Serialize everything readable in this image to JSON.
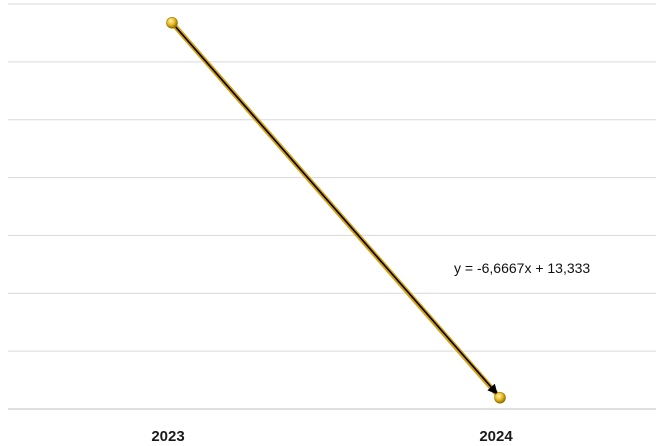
{
  "chart_data": {
    "type": "line",
    "title": "",
    "xlabel": "",
    "ylabel": "",
    "categories": [
      "2023",
      "2024"
    ],
    "series": [
      {
        "values": [
          6.6666,
          -0.0001
        ],
        "color": "#d4a017"
      }
    ],
    "trendline": {
      "label": "y = -6,6667x + 13,333",
      "color": "#000000"
    },
    "ylim": [
      -0.2,
      7.0
    ],
    "y_gridlines": 7,
    "grid": true,
    "legend": "none",
    "colors": {
      "series": "#d4a017",
      "trend": "#000000",
      "grid": "#d9d9d9"
    }
  }
}
